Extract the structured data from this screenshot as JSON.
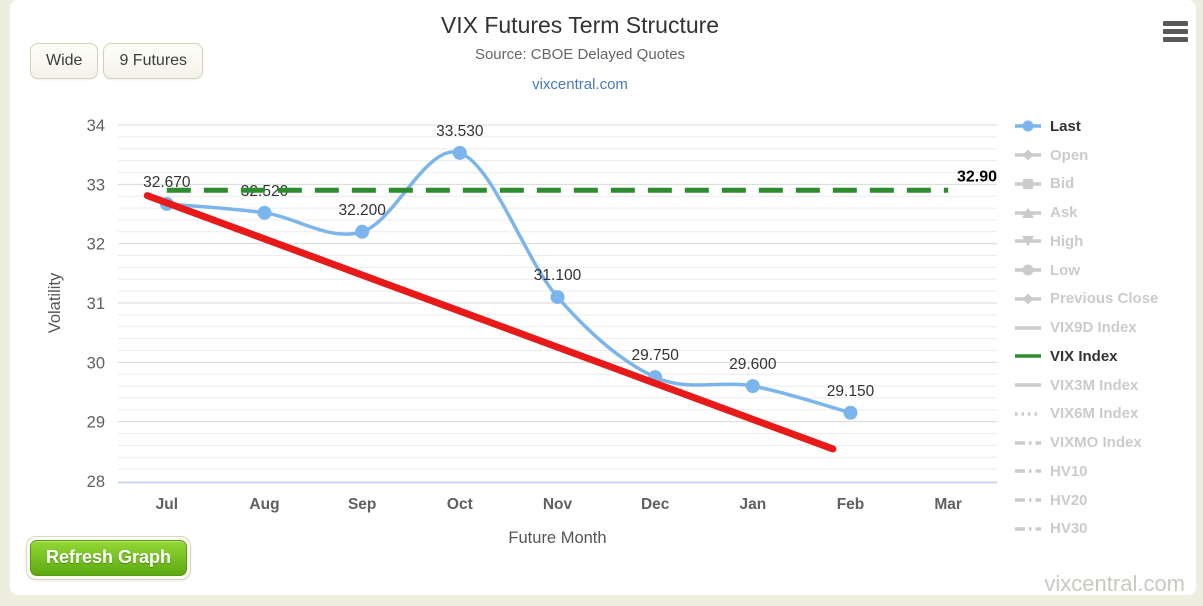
{
  "page": {
    "background_color": "#eeeee0",
    "card_color": "#ffffff",
    "watermark": "vixcentral.com"
  },
  "header": {
    "title": "VIX Futures Term Structure",
    "subtitle": "Source: CBOE Delayed Quotes",
    "link": "vixcentral.com",
    "menu_icon": "hamburger-icon"
  },
  "toolbar": {
    "wide_button": "Wide",
    "futures_button": "9 Futures"
  },
  "footer": {
    "refresh_button": "Refresh Graph"
  },
  "chart_data": {
    "type": "line",
    "title": "VIX Futures Term Structure",
    "xlabel": "Future Month",
    "ylabel": "Volatility",
    "ylim": [
      28,
      34
    ],
    "y_major_ticks": [
      28,
      29,
      30,
      31,
      32,
      33,
      34
    ],
    "y_minor_step": 0.2,
    "grid": true,
    "legend_position": "right",
    "categories": [
      "Jul",
      "Aug",
      "Sep",
      "Oct",
      "Nov",
      "Dec",
      "Jan",
      "Feb",
      "Mar"
    ],
    "series": [
      {
        "name": "Last",
        "type": "spline",
        "color": "#7cb5ec",
        "marker": "circle",
        "values": [
          32.67,
          32.52,
          32.2,
          33.53,
          31.1,
          29.75,
          29.6,
          29.15,
          null
        ],
        "data_labels": [
          "32.670",
          "32.520",
          "32.200",
          "33.530",
          "31.100",
          "29.750",
          "29.600",
          "29.150"
        ]
      },
      {
        "name": "VIX Index",
        "type": "dashed-hline",
        "color": "#2d8c2d",
        "value": 32.9,
        "label": "32.90",
        "span_categories": [
          0,
          8
        ]
      },
      {
        "name": "Trend",
        "type": "straight-line",
        "color": "#e81919",
        "from": {
          "x": -0.2,
          "value": 32.81
        },
        "to": {
          "x": 6.82,
          "value": 28.54
        }
      }
    ],
    "axis_colors": {
      "major_grid": "#d8d8d8",
      "minor_grid": "#ececec",
      "axis_line": "#ccd6eb",
      "tick_text": "#606060",
      "axis_title": "#555555",
      "data_label": "#333333",
      "vix_label": "#000000"
    }
  },
  "legend": {
    "active_text_color": "#333333",
    "inactive_color": "#cbcbcb",
    "items": [
      {
        "label": "Last",
        "marker": "line-circle",
        "color": "#7cb5ec",
        "active": true
      },
      {
        "label": "Open",
        "marker": "line-diamond",
        "color": "#cbcbcb",
        "active": false
      },
      {
        "label": "Bid",
        "marker": "line-square",
        "color": "#cbcbcb",
        "active": false
      },
      {
        "label": "Ask",
        "marker": "line-triangle",
        "color": "#cbcbcb",
        "active": false
      },
      {
        "label": "High",
        "marker": "line-triangle-down",
        "color": "#cbcbcb",
        "active": false
      },
      {
        "label": "Low",
        "marker": "line-circle",
        "color": "#cbcbcb",
        "active": false
      },
      {
        "label": "Previous Close",
        "marker": "line-diamond",
        "color": "#cbcbcb",
        "active": false
      },
      {
        "label": "VIX9D Index",
        "marker": "line",
        "color": "#cbcbcb",
        "active": false
      },
      {
        "label": "VIX Index",
        "marker": "line",
        "color": "#2d8c2d",
        "active": true
      },
      {
        "label": "VIX3M Index",
        "marker": "line",
        "color": "#cbcbcb",
        "active": false
      },
      {
        "label": "VIX6M Index",
        "marker": "dotted",
        "color": "#cbcbcb",
        "active": false
      },
      {
        "label": "VIXMO Index",
        "marker": "dashdot",
        "color": "#cbcbcb",
        "active": false
      },
      {
        "label": "HV10",
        "marker": "dashdot",
        "color": "#cbcbcb",
        "active": false
      },
      {
        "label": "HV20",
        "marker": "dashdot",
        "color": "#cbcbcb",
        "active": false
      },
      {
        "label": "HV30",
        "marker": "dashdot",
        "color": "#cbcbcb",
        "active": false
      }
    ]
  }
}
